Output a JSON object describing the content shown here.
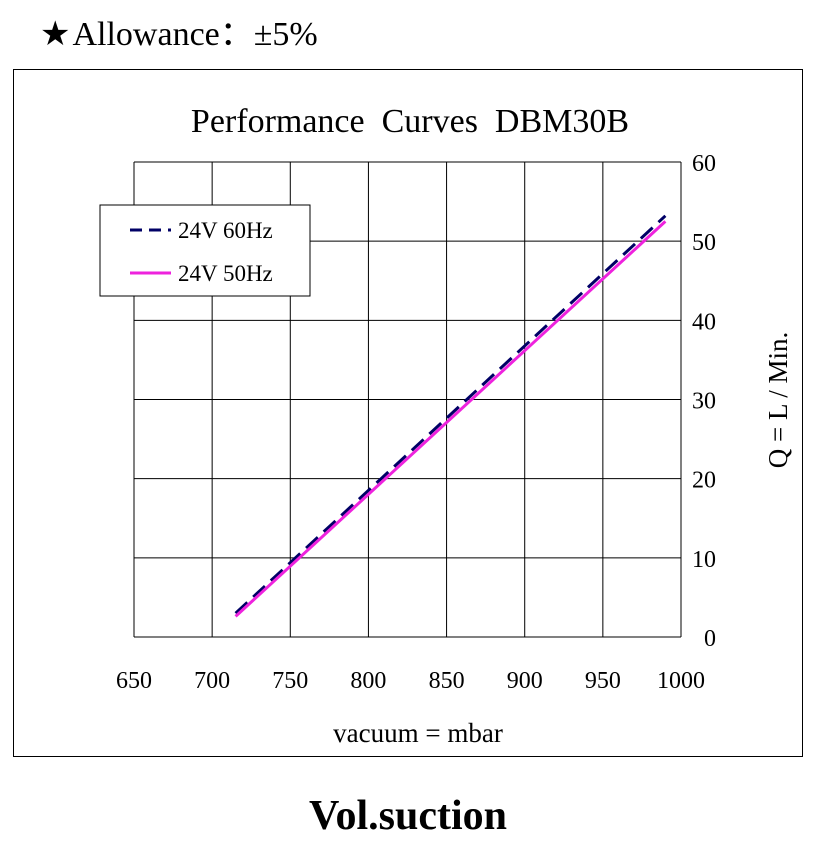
{
  "header": {
    "star_icon": "★",
    "allowance": "Allowance：±5%"
  },
  "footer": {
    "caption": "Vol.suction"
  },
  "chart_data": {
    "type": "line",
    "title": "Performance  Curves  DBM30B",
    "xlabel": "vacuum = mbar",
    "ylabel": "Q = L / Min.",
    "xlim": [
      650,
      1000
    ],
    "ylim": [
      0,
      60
    ],
    "x_ticks": [
      650,
      700,
      750,
      800,
      850,
      900,
      950,
      1000
    ],
    "y_ticks": [
      0,
      10,
      20,
      30,
      40,
      50,
      60
    ],
    "grid": true,
    "legend_position": "top-left",
    "series": [
      {
        "name": "24V 60Hz",
        "color": "#000066",
        "dash": true,
        "x": [
          715,
          990
        ],
        "y": [
          3,
          53.2
        ]
      },
      {
        "name": "24V 50Hz",
        "color": "#ee22dd",
        "dash": false,
        "x": [
          715,
          990
        ],
        "y": [
          2.6,
          52.5
        ]
      }
    ]
  }
}
